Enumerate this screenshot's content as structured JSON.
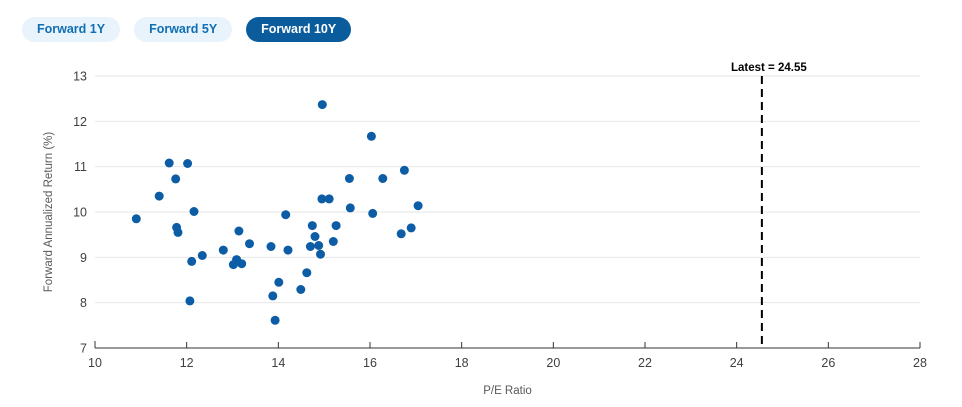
{
  "tabs": [
    {
      "label": "Forward 1Y",
      "selected": false
    },
    {
      "label": "Forward 5Y",
      "selected": false
    },
    {
      "label": "Forward 10Y",
      "selected": true
    }
  ],
  "colors": {
    "background": "#ffffff",
    "tab_selected_bg": "#0B5C9D",
    "tab_selected_text": "#ffffff",
    "tab_bg": "#E9F3FB",
    "tab_text": "#0E6FB5",
    "marker": "#0C5DA5",
    "gridline": "#e6e6e6",
    "axis_line": "#333333",
    "tick_label": "#404040",
    "axis_title": "#595959",
    "reference_line": "#000000"
  },
  "chart_data": {
    "type": "scatter",
    "title": "",
    "xlabel": "P/E Ratio",
    "ylabel": "Forward Annualized Return (%)",
    "xlim": [
      10,
      28
    ],
    "ylim": [
      7,
      13
    ],
    "x_ticks": [
      10,
      12,
      14,
      16,
      18,
      20,
      22,
      24,
      26,
      28
    ],
    "y_ticks": [
      7,
      8,
      9,
      10,
      11,
      12,
      13
    ],
    "grid": "horizontal-only",
    "legend": "none",
    "reference_line": {
      "x": 24.55,
      "label": "Latest = 24.55",
      "style": "dashed"
    },
    "series": [
      {
        "name": "Forward 10Y",
        "points": [
          [
            10.9,
            9.85
          ],
          [
            11.4,
            10.35
          ],
          [
            11.62,
            11.08
          ],
          [
            11.76,
            10.73
          ],
          [
            11.78,
            9.66
          ],
          [
            11.81,
            9.55
          ],
          [
            12.02,
            11.07
          ],
          [
            12.07,
            8.04
          ],
          [
            12.11,
            8.91
          ],
          [
            12.16,
            10.01
          ],
          [
            12.34,
            9.04
          ],
          [
            12.8,
            9.16
          ],
          [
            13.02,
            8.84
          ],
          [
            13.09,
            8.95
          ],
          [
            13.14,
            9.58
          ],
          [
            13.2,
            8.86
          ],
          [
            13.37,
            9.3
          ],
          [
            13.84,
            9.24
          ],
          [
            13.88,
            8.15
          ],
          [
            13.93,
            7.61
          ],
          [
            14.01,
            8.45
          ],
          [
            14.16,
            9.94
          ],
          [
            14.21,
            9.16
          ],
          [
            14.49,
            8.29
          ],
          [
            14.62,
            8.66
          ],
          [
            14.7,
            9.24
          ],
          [
            14.74,
            9.7
          ],
          [
            14.8,
            9.46
          ],
          [
            14.88,
            9.26
          ],
          [
            14.92,
            9.07
          ],
          [
            14.95,
            10.29
          ],
          [
            14.96,
            12.37
          ],
          [
            15.11,
            10.29
          ],
          [
            15.2,
            9.35
          ],
          [
            15.26,
            9.7
          ],
          [
            15.55,
            10.74
          ],
          [
            15.57,
            10.09
          ],
          [
            16.03,
            11.67
          ],
          [
            16.06,
            9.97
          ],
          [
            16.28,
            10.74
          ],
          [
            16.68,
            9.52
          ],
          [
            16.75,
            10.92
          ],
          [
            16.9,
            9.65
          ],
          [
            17.05,
            10.14
          ]
        ]
      }
    ]
  }
}
